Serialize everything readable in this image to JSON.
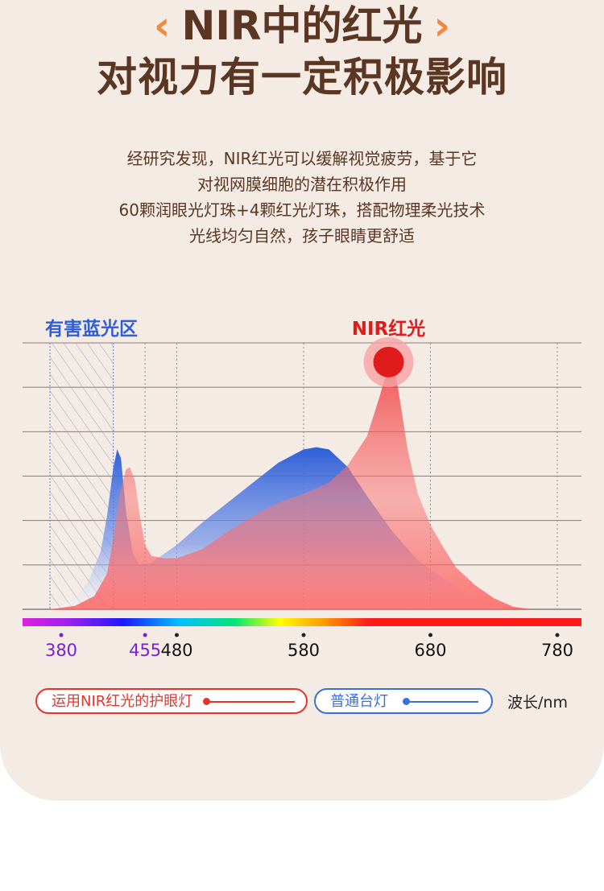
{
  "headline": {
    "line1": "NIR中的红光",
    "line2": "对视力有一定积极影响",
    "chevron_left": "‹",
    "chevron_right": "›"
  },
  "description": [
    "经研究发现，NIR红光可以缓解视觉疲劳，基于它",
    "对视网膜细胞的潜在积极作用",
    "60颗润眼光灯珠+4颗红光灯珠，搭配物理柔光技术",
    "光线均匀自然，孩子眼睛更舒适"
  ],
  "chart_data": {
    "type": "area",
    "x_label": "波长/nm",
    "x_ticks": [
      {
        "value": 380,
        "label": "380",
        "color": "#7a1fd1"
      },
      {
        "value": 455,
        "label": "455",
        "color": "#7a1fd1"
      },
      {
        "value": 480,
        "label": "480",
        "color": "#111111"
      },
      {
        "value": 580,
        "label": "580",
        "color": "#111111"
      },
      {
        "value": 680,
        "label": "680",
        "color": "#111111"
      },
      {
        "value": 780,
        "label": "780",
        "color": "#111111"
      }
    ],
    "xlim": [
      380,
      780
    ],
    "ylim": [
      0,
      6
    ],
    "grid": true,
    "zones": [
      {
        "label": "有害蓝光区",
        "from": 380,
        "to": 430,
        "color": "#2e5fd8"
      }
    ],
    "annotations": [
      {
        "label": "NIR红光",
        "x": 647,
        "color": "#e01b1b"
      }
    ],
    "series": [
      {
        "name": "普通台灯",
        "color": "#2e5fd8",
        "points": [
          [
            380,
            0
          ],
          [
            390,
            0.1
          ],
          [
            400,
            0.25
          ],
          [
            410,
            0.6
          ],
          [
            420,
            1.3
          ],
          [
            425,
            2.1
          ],
          [
            430,
            3.2
          ],
          [
            433,
            3.6
          ],
          [
            436,
            3.4
          ],
          [
            440,
            2.2
          ],
          [
            445,
            1.3
          ],
          [
            450,
            1.0
          ],
          [
            460,
            1.05
          ],
          [
            480,
            1.45
          ],
          [
            500,
            1.95
          ],
          [
            520,
            2.4
          ],
          [
            540,
            2.85
          ],
          [
            560,
            3.3
          ],
          [
            580,
            3.6
          ],
          [
            590,
            3.65
          ],
          [
            600,
            3.6
          ],
          [
            615,
            3.2
          ],
          [
            630,
            2.55
          ],
          [
            650,
            1.75
          ],
          [
            670,
            1.1
          ],
          [
            690,
            0.7
          ],
          [
            700,
            0.5
          ],
          [
            715,
            0.25
          ],
          [
            730,
            0.08
          ],
          [
            745,
            0
          ],
          [
            780,
            0
          ]
        ]
      },
      {
        "name": "运用NIR红光的护眼灯",
        "color": "#ef3b3b",
        "points": [
          [
            380,
            0
          ],
          [
            400,
            0.08
          ],
          [
            415,
            0.3
          ],
          [
            425,
            0.8
          ],
          [
            430,
            1.6
          ],
          [
            435,
            2.6
          ],
          [
            440,
            3.15
          ],
          [
            443,
            3.2
          ],
          [
            447,
            2.9
          ],
          [
            451,
            2.1
          ],
          [
            455,
            1.45
          ],
          [
            460,
            1.2
          ],
          [
            470,
            1.15
          ],
          [
            480,
            1.15
          ],
          [
            500,
            1.35
          ],
          [
            520,
            1.75
          ],
          [
            540,
            2.1
          ],
          [
            560,
            2.4
          ],
          [
            580,
            2.6
          ],
          [
            600,
            2.85
          ],
          [
            615,
            3.25
          ],
          [
            630,
            3.9
          ],
          [
            640,
            4.8
          ],
          [
            645,
            5.3
          ],
          [
            648,
            5.55
          ],
          [
            652,
            5.4
          ],
          [
            656,
            4.7
          ],
          [
            662,
            3.6
          ],
          [
            670,
            2.6
          ],
          [
            680,
            1.9
          ],
          [
            690,
            1.4
          ],
          [
            700,
            0.95
          ],
          [
            715,
            0.55
          ],
          [
            730,
            0.25
          ],
          [
            745,
            0.06
          ],
          [
            760,
            0
          ],
          [
            780,
            0
          ]
        ]
      }
    ]
  },
  "legend": {
    "red_label": "运用NIR红光的护眼灯",
    "blue_label": "普通台灯"
  },
  "colors": {
    "title": "#5a3623",
    "accent_orange": "#f08a3e",
    "red": "#e8342c",
    "blue": "#3a6fdc",
    "background": "#f4ebe5"
  }
}
